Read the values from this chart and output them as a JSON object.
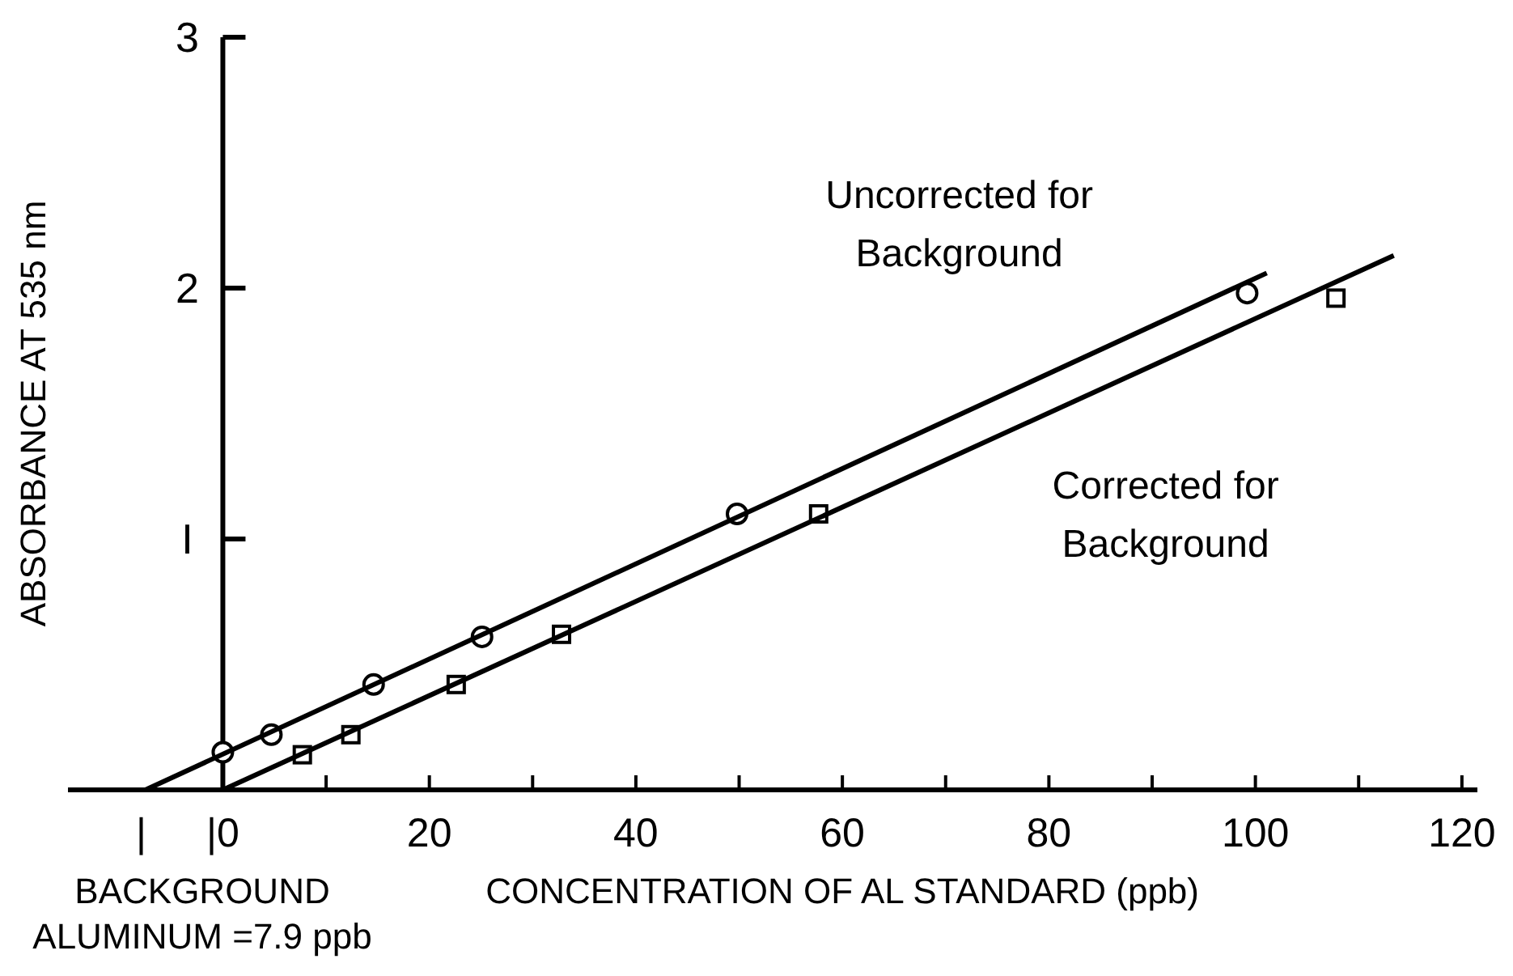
{
  "chart_data": {
    "type": "scatter",
    "xlabel": "CONCENTRATION OF AL STANDARD (ppb)",
    "ylabel": "ABSORBANCE AT 535 nm",
    "xlim": [
      -15,
      121.5
    ],
    "ylim": [
      0,
      3
    ],
    "xticks": [
      {
        "value": -7.9,
        "label": "|"
      },
      {
        "value": 0,
        "label": "|0"
      },
      {
        "value": 10,
        "label": null
      },
      20,
      {
        "value": 30,
        "label": null
      },
      40,
      {
        "value": 50,
        "label": null
      },
      60,
      {
        "value": 70,
        "label": null
      },
      80,
      {
        "value": 90,
        "label": null
      },
      100,
      {
        "value": 110,
        "label": null
      },
      120
    ],
    "yticks": [
      {
        "value": 1,
        "label": "I"
      },
      2,
      3
    ],
    "grid": false,
    "legend": false,
    "series": [
      {
        "marker": "circle",
        "color": "#000000",
        "x": [
          0,
          4.7,
          14.6,
          25.1,
          49.8,
          99.2
        ],
        "values": [
          0.15,
          0.22,
          0.42,
          0.61,
          1.1,
          1.98
        ]
      },
      {
        "marker": "square",
        "color": "#000000",
        "x": [
          7.7,
          12.4,
          22.6,
          32.8,
          57.7,
          107.8
        ],
        "values": [
          0.14,
          0.22,
          0.42,
          0.62,
          1.1,
          1.96
        ]
      },
      {
        "name": "Uncorrected for Background",
        "type": "line",
        "line_style": "solid",
        "color": "#000000",
        "x": [
          -7.5,
          101.1
        ],
        "values": [
          0,
          2.06
        ]
      },
      {
        "name": "Corrected for Background",
        "type": "line",
        "line_style": "solid",
        "color": "#000000",
        "x": [
          0,
          113.4
        ],
        "values": [
          0,
          2.13
        ]
      }
    ],
    "annotations": [
      "BACKGROUND ALUMINUM =7.9 ppb"
    ]
  }
}
